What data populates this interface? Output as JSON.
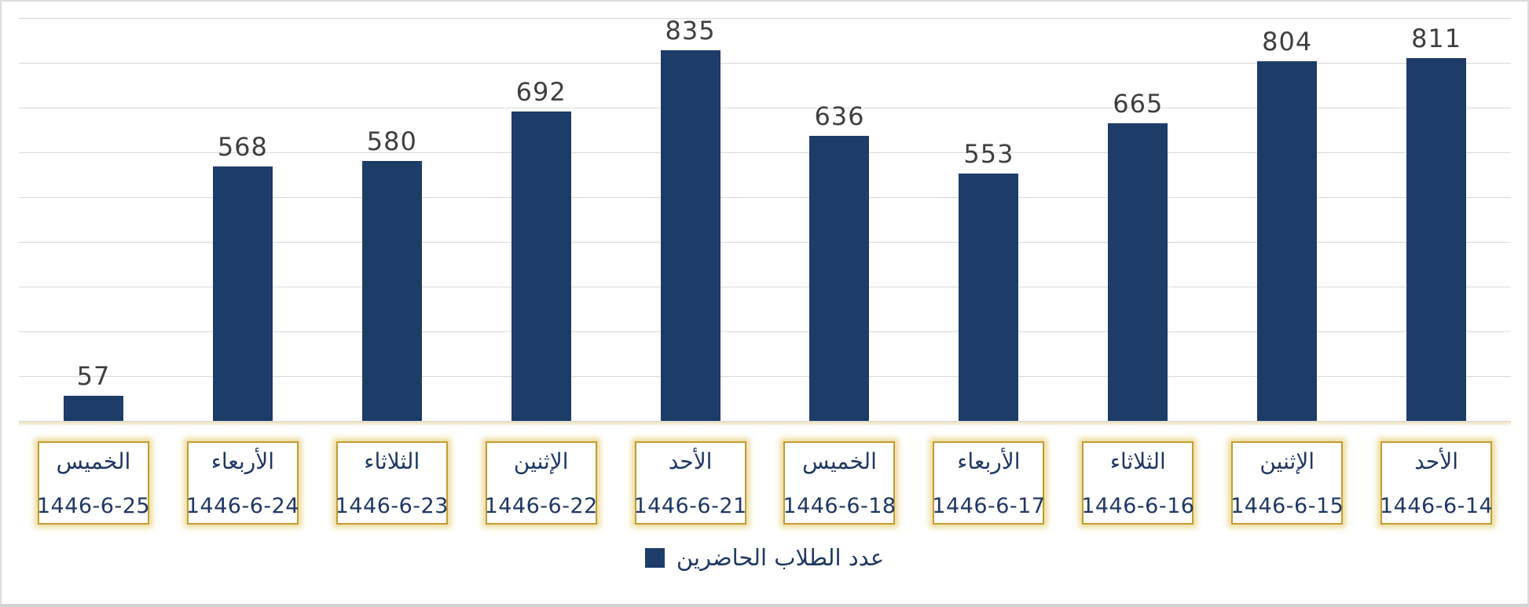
{
  "chart_data": {
    "type": "bar",
    "title": "",
    "legend": "عدد الطلاب الحاضرين",
    "legend_position": "bottom-center",
    "bar_color": "#1d3c68",
    "grid_color": "#d9d9d9",
    "value_label_color": "#3f3f3f",
    "category_box_border_color": "#c49b31",
    "category_text_color": "#1f3864",
    "ylim": [
      0,
      900
    ],
    "gridline_step": 100,
    "grid": true,
    "y_axis_labels_visible": false,
    "categories": [
      {
        "day": "الخميس",
        "date": "1446-6-25"
      },
      {
        "day": "الأربعاء",
        "date": "1446-6-24"
      },
      {
        "day": "الثلاثاء",
        "date": "1446-6-23"
      },
      {
        "day": "الإثنين",
        "date": "1446-6-22"
      },
      {
        "day": "الأحد",
        "date": "1446-6-21"
      },
      {
        "day": "الخميس",
        "date": "1446-6-18"
      },
      {
        "day": "الأربعاء",
        "date": "1446-6-17"
      },
      {
        "day": "الثلاثاء",
        "date": "1446-6-16"
      },
      {
        "day": "الإثنين",
        "date": "1446-6-15"
      },
      {
        "day": "الأحد",
        "date": "1446-6-14"
      }
    ],
    "series": [
      {
        "name": "عدد الطلاب الحاضرين",
        "values": [
          57,
          568,
          580,
          692,
          835,
          636,
          553,
          665,
          804,
          811
        ]
      }
    ]
  }
}
